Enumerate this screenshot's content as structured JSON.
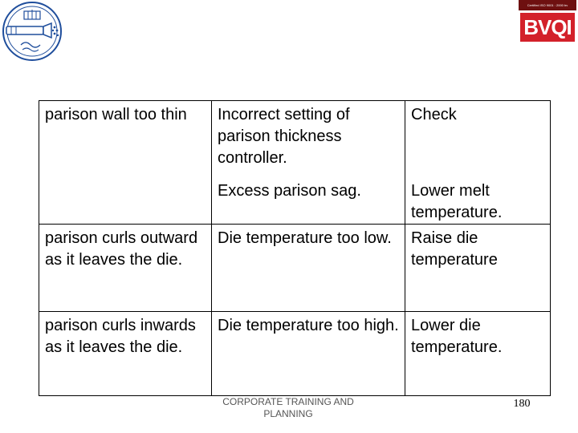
{
  "header": {
    "logo_left_icon": "institute-seal-icon",
    "logo_right": {
      "certification_text": "Certified ISO 9001 : 2000 bv",
      "brand": "BVQI"
    }
  },
  "table": {
    "rows": [
      {
        "problem": "parison wall too thin",
        "cause": "Incorrect setting of parison thickness controller.",
        "remedy": "Check"
      },
      {
        "problem": "",
        "cause": "Excess parison sag.",
        "remedy": "Lower melt temperature."
      },
      {
        "problem": "parison curls outward as it leaves the die.",
        "cause": "Die temperature too low.",
        "remedy": "Raise die temperature"
      },
      {
        "problem": "parison curls inwards as it leaves the die.",
        "cause": "Die temperature too high.",
        "remedy": "Lower die temperature."
      }
    ]
  },
  "footer": {
    "org_text": "CORPORATE TRAINING AND PLANNING",
    "page_number": "180"
  },
  "colors": {
    "brand_red": "#d3212a",
    "cert_bar": "#6e1010",
    "seal_blue": "#1f4e9c"
  }
}
